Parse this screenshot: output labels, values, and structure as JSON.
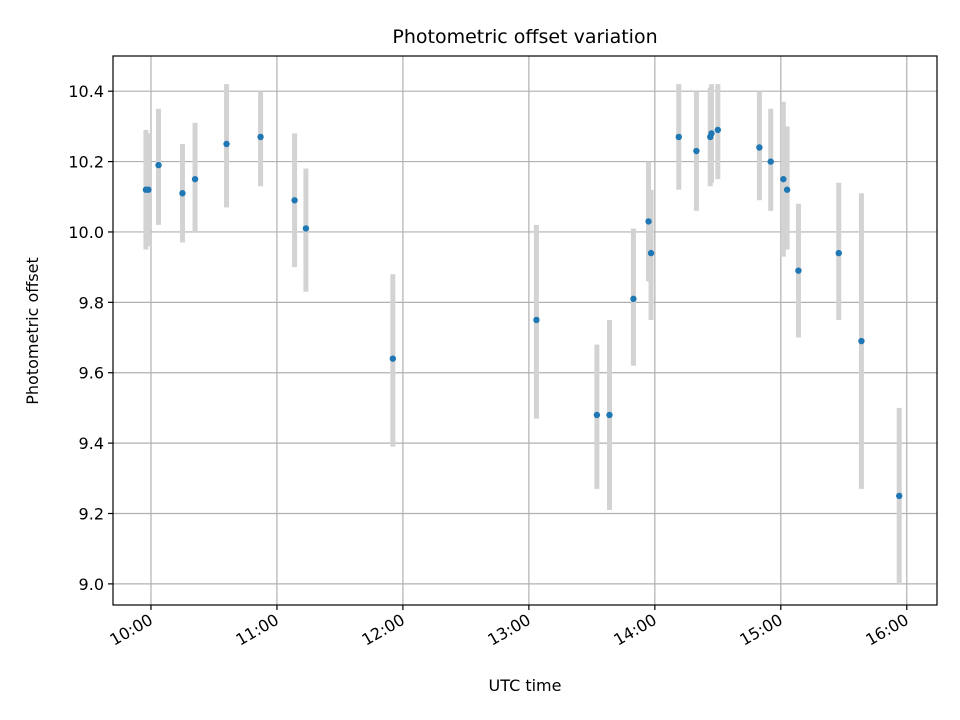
{
  "chart_data": {
    "type": "scatter",
    "title": "Photometric offset variation",
    "xlabel": "UTC time",
    "ylabel": "Photometric offset",
    "x_unit": "hours UTC",
    "xlim": [
      9.6986,
      16.2399
    ],
    "ylim": [
      8.94,
      10.5
    ],
    "grid": true,
    "x_ticks": [
      {
        "value": 10,
        "label": "10:00"
      },
      {
        "value": 11,
        "label": "11:00"
      },
      {
        "value": 12,
        "label": "12:00"
      },
      {
        "value": 13,
        "label": "13:00"
      },
      {
        "value": 14,
        "label": "14:00"
      },
      {
        "value": 15,
        "label": "15:00"
      },
      {
        "value": 16,
        "label": "16:00"
      }
    ],
    "y_ticks": [
      {
        "value": 9.0,
        "label": "9.0"
      },
      {
        "value": 9.2,
        "label": "9.2"
      },
      {
        "value": 9.4,
        "label": "9.4"
      },
      {
        "value": 9.6,
        "label": "9.6"
      },
      {
        "value": 9.8,
        "label": "9.8"
      },
      {
        "value": 10.0,
        "label": "10.0"
      },
      {
        "value": 10.2,
        "label": "10.2"
      },
      {
        "value": 10.4,
        "label": "10.4"
      }
    ],
    "marker_color": "#1f77b4",
    "errorbar_color": "#d3d3d3",
    "points": [
      {
        "x": 9.96,
        "y": 10.12,
        "lo": 9.95,
        "hi": 10.29
      },
      {
        "x": 9.98,
        "y": 10.12,
        "lo": 9.96,
        "hi": 10.28
      },
      {
        "x": 10.06,
        "y": 10.19,
        "lo": 10.02,
        "hi": 10.35
      },
      {
        "x": 10.25,
        "y": 10.11,
        "lo": 9.97,
        "hi": 10.25
      },
      {
        "x": 10.35,
        "y": 10.15,
        "lo": 10.0,
        "hi": 10.31
      },
      {
        "x": 10.6,
        "y": 10.25,
        "lo": 10.07,
        "hi": 10.42
      },
      {
        "x": 10.87,
        "y": 10.27,
        "lo": 10.13,
        "hi": 10.4
      },
      {
        "x": 11.14,
        "y": 10.09,
        "lo": 9.9,
        "hi": 10.28
      },
      {
        "x": 11.23,
        "y": 10.01,
        "lo": 9.83,
        "hi": 10.18
      },
      {
        "x": 11.92,
        "y": 9.64,
        "lo": 9.39,
        "hi": 9.88
      },
      {
        "x": 13.06,
        "y": 9.75,
        "lo": 9.47,
        "hi": 10.02
      },
      {
        "x": 13.54,
        "y": 9.48,
        "lo": 9.27,
        "hi": 9.68
      },
      {
        "x": 13.64,
        "y": 9.48,
        "lo": 9.21,
        "hi": 9.75
      },
      {
        "x": 13.83,
        "y": 9.81,
        "lo": 9.62,
        "hi": 10.01
      },
      {
        "x": 13.95,
        "y": 10.03,
        "lo": 9.86,
        "hi": 10.2
      },
      {
        "x": 13.97,
        "y": 9.94,
        "lo": 9.75,
        "hi": 10.12
      },
      {
        "x": 14.19,
        "y": 10.27,
        "lo": 10.12,
        "hi": 10.42
      },
      {
        "x": 14.33,
        "y": 10.23,
        "lo": 10.06,
        "hi": 10.4
      },
      {
        "x": 14.44,
        "y": 10.27,
        "lo": 10.13,
        "hi": 10.41
      },
      {
        "x": 14.45,
        "y": 10.28,
        "lo": 10.14,
        "hi": 10.42
      },
      {
        "x": 14.5,
        "y": 10.29,
        "lo": 10.15,
        "hi": 10.42
      },
      {
        "x": 14.83,
        "y": 10.24,
        "lo": 10.09,
        "hi": 10.4
      },
      {
        "x": 14.92,
        "y": 10.2,
        "lo": 10.06,
        "hi": 10.35
      },
      {
        "x": 15.02,
        "y": 10.15,
        "lo": 9.93,
        "hi": 10.37
      },
      {
        "x": 15.05,
        "y": 10.12,
        "lo": 9.95,
        "hi": 10.3
      },
      {
        "x": 15.14,
        "y": 9.89,
        "lo": 9.7,
        "hi": 10.08
      },
      {
        "x": 15.46,
        "y": 9.94,
        "lo": 9.75,
        "hi": 10.14
      },
      {
        "x": 15.64,
        "y": 9.69,
        "lo": 9.27,
        "hi": 10.11
      },
      {
        "x": 15.94,
        "y": 9.25,
        "lo": 9.0,
        "hi": 9.5
      }
    ]
  }
}
